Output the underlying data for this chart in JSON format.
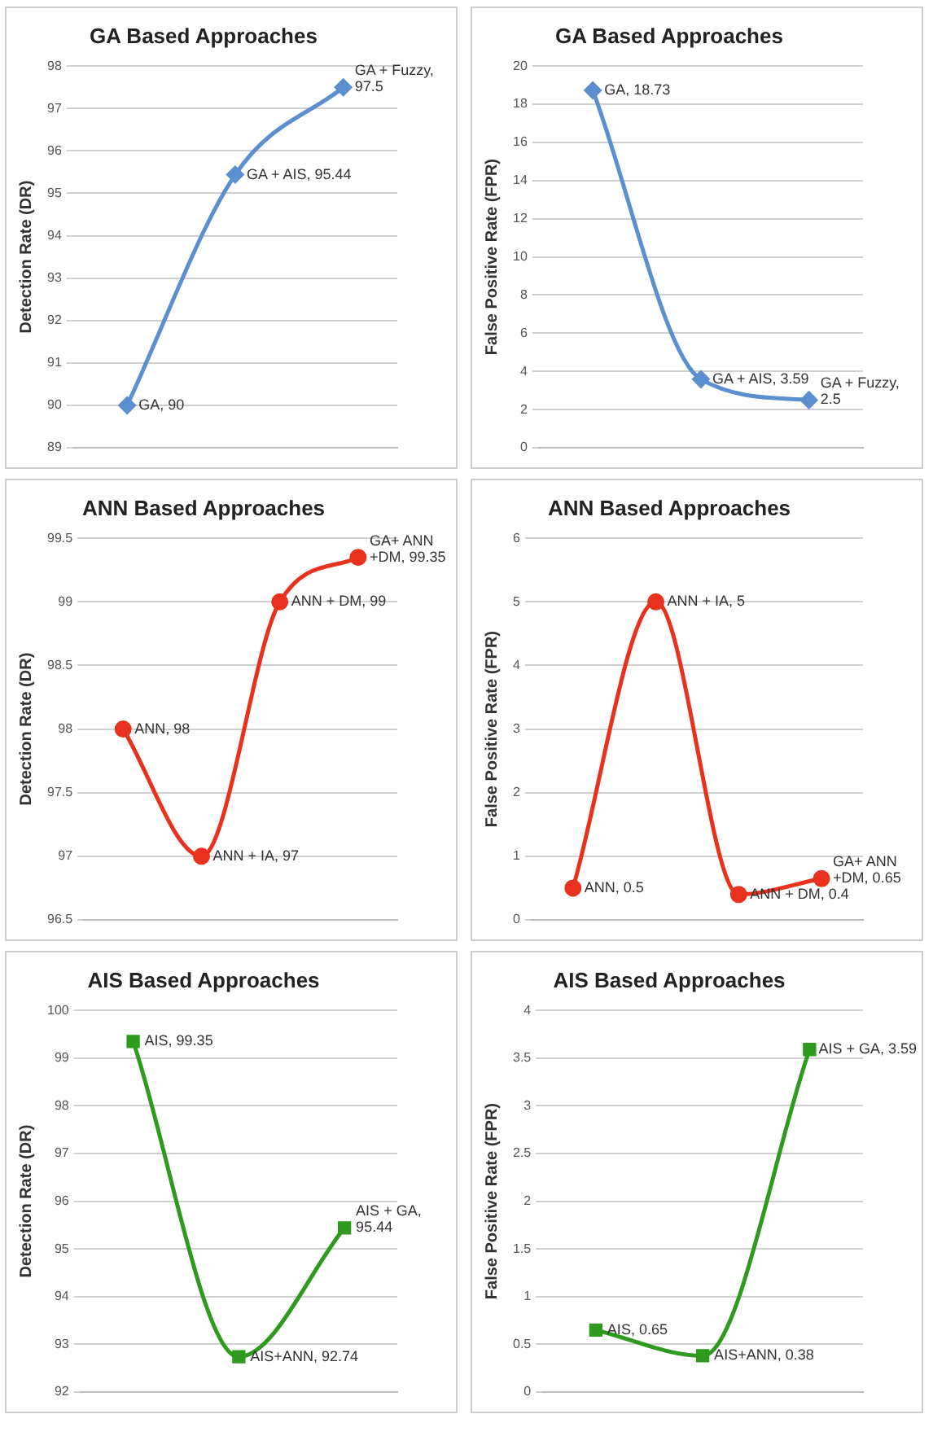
{
  "chart_data": [
    {
      "type": "line",
      "title": "GA Based Approaches",
      "ylabel": "Detection Rate (DR)",
      "categories": [
        null,
        null,
        null
      ],
      "series": [
        {
          "color": "#5b8fd0",
          "values": [
            90,
            95.44,
            97.5
          ],
          "value_labels": [
            "GA, 90",
            "GA + AIS, 95.44",
            "GA + Fuzzy, 97.5"
          ]
        }
      ],
      "ylim": [
        89,
        98
      ],
      "yticks": [
        89,
        90,
        91,
        92,
        93,
        94,
        95,
        96,
        97,
        98
      ],
      "grid": "y",
      "legend": false,
      "tick_labels": "y",
      "marker": "diamond",
      "line_style": "solid"
    },
    {
      "type": "line",
      "title": "GA Based Approaches",
      "ylabel": "False Positive Rate (FPR)",
      "categories": [
        null,
        null,
        null
      ],
      "series": [
        {
          "color": "#5b8fd0",
          "values": [
            18.73,
            3.59,
            2.5
          ],
          "value_labels": [
            "GA, 18.73",
            "GA + AIS, 3.59",
            "GA + Fuzzy, 2.5"
          ]
        }
      ],
      "ylim": [
        0,
        20
      ],
      "yticks": [
        0,
        2,
        4,
        6,
        8,
        10,
        12,
        14,
        16,
        18,
        20
      ],
      "grid": "y",
      "legend": false,
      "tick_labels": "y",
      "marker": "diamond",
      "line_style": "solid"
    },
    {
      "type": "line",
      "title": "ANN Based Approaches",
      "ylabel": "Detection Rate (DR)",
      "categories": [
        null,
        null,
        null,
        null
      ],
      "series": [
        {
          "color": "#e8321e",
          "values": [
            98,
            97,
            99,
            99.35
          ],
          "value_labels": [
            "ANN, 98",
            "ANN + IA, 97",
            "ANN + DM, 99",
            "GA+ ANN +DM, 99.35"
          ]
        }
      ],
      "ylim": [
        96.5,
        99.5
      ],
      "yticks": [
        96.5,
        97,
        97.5,
        98,
        98.5,
        99,
        99.5
      ],
      "grid": "y",
      "legend": false,
      "tick_labels": "y",
      "marker": "circle",
      "line_style": "solid"
    },
    {
      "type": "line",
      "title": "ANN Based Approaches",
      "ylabel": "False Positive Rate (FPR)",
      "categories": [
        null,
        null,
        null,
        null
      ],
      "series": [
        {
          "color": "#e8321e",
          "values": [
            0.5,
            5,
            0.4,
            0.65
          ],
          "value_labels": [
            "ANN, 0.5",
            "ANN + IA, 5",
            "ANN + DM, 0.4",
            "GA+ ANN +DM, 0.65"
          ]
        }
      ],
      "ylim": [
        0,
        6
      ],
      "yticks": [
        0,
        1,
        2,
        3,
        4,
        5,
        6
      ],
      "grid": "y",
      "legend": false,
      "tick_labels": "y",
      "marker": "circle",
      "line_style": "solid"
    },
    {
      "type": "line",
      "title": "AIS Based Approaches",
      "ylabel": "Detection Rate (DR)",
      "categories": [
        null,
        null,
        null
      ],
      "series": [
        {
          "color": "#2e9a1e",
          "values": [
            99.35,
            92.74,
            95.44
          ],
          "value_labels": [
            "AIS, 99.35",
            "AIS+ANN, 92.74",
            "AIS + GA, 95.44"
          ]
        }
      ],
      "ylim": [
        92,
        100
      ],
      "yticks": [
        92,
        93,
        94,
        95,
        96,
        97,
        98,
        99,
        100
      ],
      "grid": "y",
      "legend": false,
      "tick_labels": "y",
      "marker": "square",
      "line_style": "solid"
    },
    {
      "type": "line",
      "title": "AIS Based Approaches",
      "ylabel": "False Positive Rate (FPR)",
      "categories": [
        null,
        null,
        null
      ],
      "series": [
        {
          "color": "#2e9a1e",
          "values": [
            0.65,
            0.38,
            3.59
          ],
          "value_labels": [
            "AIS, 0.65",
            "AIS+ANN, 0.38",
            "AIS + GA, 3.59"
          ]
        }
      ],
      "ylim": [
        0,
        4
      ],
      "yticks": [
        0,
        0.5,
        1,
        1.5,
        2,
        2.5,
        3,
        3.5,
        4
      ],
      "grid": "y",
      "legend": false,
      "tick_labels": "y",
      "marker": "square",
      "line_style": "solid"
    }
  ]
}
